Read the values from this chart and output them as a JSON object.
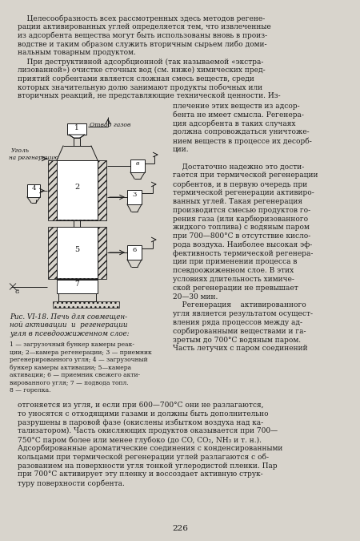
{
  "page_bg": "#d8d4cc",
  "text_color": "#1a1a1a",
  "line_color": "#1a1a1a",
  "top_text_lines": [
    "    Целесообразность всех рассмотренных здесь методов регене-",
    "рации активированных углей определяется тем, что извлеченные",
    "из адсорбента вещества могут быть использованы вновь в произ-",
    "водстве и таким образом служить вторичным сырьем либо доми-",
    "нальным товарным продуктом.",
    "    При деструктивной адсорбционной (так называемой «экстра-",
    "лизованной») очистке сточных вод (см. ниже) химических пред-",
    "приятий сорбентами является сложная смесь веществ, среди",
    "которых значительную долю занимают продукты побочных или",
    "вторичных реакций, не представляющие технической ценности. Из-"
  ],
  "right_col_lines": [
    "плечение этих веществ из адсор-",
    "бента не имеет смысла. Регенера-",
    "ция адсорбента в таких случаях",
    "должна сопровождаться уничтоже-",
    "нием веществ в процессе их десорб-",
    "ции.",
    "",
    "    Достаточно надежно это дости-",
    "гается при термической регенерации",
    "сорбентов, и в первую очередь при",
    "термической регенерации активиро-",
    "ванных углей. Такая регенерация",
    "производится смесью продуктов го-",
    "рения газа (или карбюризованного",
    "жидкого топлива) с водяным паром",
    "при 700—800°C в отсутствие кисло-",
    "рода воздуха. Наиболее высокая эф-",
    "фективность термической регенера-",
    "ции при применении процесса в",
    "псевдоожиженном слое. В этих",
    "условиях длительность химиче-",
    "ской регенерации не превышает",
    "20—30 мин.",
    "    Регенерация    активированного",
    "угля является результатом осущест-",
    "вления ряда процессов между ад-",
    "сорбированными веществами и га-",
    "зретым до 700°C водяным паром.",
    "Часть летучих с паром соединений"
  ],
  "caption_line1": "Рис. VI-18. Печь для совмещен-",
  "caption_line2": "ной активации  и  регенерации",
  "caption_line3": "угля в псевдоожиженном слое:",
  "legend_lines": [
    "1 — загрузочный бункер камеры реак-",
    "ции; 2—камера регенерации; 3 — приемник",
    "регенерированного угля; 4 — загрузочный",
    "бункер камеры активации; 5—камера",
    "активации; 6 — приемник свежего акти-",
    "вированного угля; 7 — подвода топл.",
    "8 — горелка."
  ],
  "bottom_full_lines": [
    "отгоняется из угля, и если при 600—700°C они не разлагаются,",
    "то уносятся с отходящими газами и должны быть дополнительно",
    "разрушены в паровой фазе (окислены избытком воздуха над ка-",
    "тализатором). Часть окисляющих продуктов оказывается при 700—",
    "750°C паром более или менее глубоко (до CO, CO₂, NH₃ и т. н.).",
    "Адсорбированные ароматические соединения с конденсированными",
    "кольцами при термической регенерации углей разлагаются с об-",
    "разованием на поверхности угля тонкой углеродистой пленки. Пар",
    "при 700°C активирует эту пленку и воссоздает активную струк-",
    "туру поверхности сорбента."
  ],
  "page_number": "226"
}
